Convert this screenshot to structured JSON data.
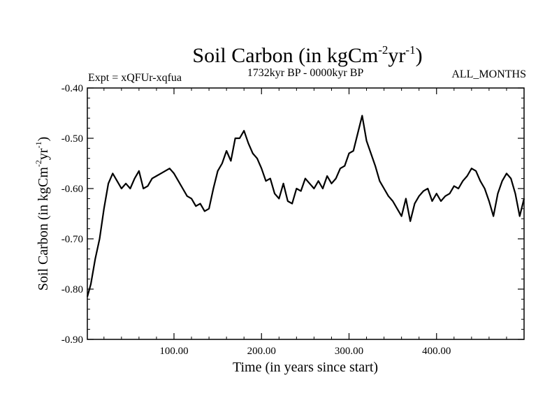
{
  "chart_data": {
    "type": "line",
    "title": "Soil Carbon (in kgCm",
    "title_sup1": "-2",
    "title_mid": "yr",
    "title_sup2": "-1",
    "title_end": ")",
    "subtitle_left": "Expt = xQFUr-xqfua",
    "subtitle_center": "1732kyr BP - 0000kyr BP",
    "subtitle_right": "ALL_MONTHS",
    "xlabel": "Time (in years since start)",
    "ylabel": "Soil Carbon (in kgCm",
    "ylabel_sup1": "-2",
    "ylabel_mid": "yr",
    "ylabel_sup2": "-1",
    "ylabel_end": ")",
    "xlim": [
      1,
      500
    ],
    "ylim": [
      -0.9,
      -0.4
    ],
    "x_ticks": [
      100,
      200,
      300,
      400
    ],
    "x_tick_labels": [
      "100.00",
      "200.00",
      "300.00",
      "400.00"
    ],
    "y_ticks": [
      -0.9,
      -0.8,
      -0.7,
      -0.6,
      -0.5,
      -0.4
    ],
    "y_tick_labels": [
      "-0.90",
      "-0.80",
      "-0.70",
      "-0.60",
      "-0.50",
      "-0.40"
    ],
    "series": [
      {
        "name": "Soil Carbon",
        "x": [
          1,
          5,
          10,
          15,
          20,
          25,
          30,
          35,
          40,
          45,
          50,
          55,
          60,
          65,
          70,
          75,
          80,
          85,
          90,
          95,
          100,
          105,
          110,
          115,
          120,
          125,
          130,
          135,
          140,
          145,
          150,
          155,
          160,
          165,
          170,
          175,
          180,
          185,
          190,
          195,
          200,
          205,
          210,
          215,
          220,
          225,
          230,
          235,
          240,
          245,
          250,
          255,
          260,
          265,
          270,
          275,
          280,
          285,
          290,
          295,
          300,
          305,
          310,
          315,
          320,
          325,
          330,
          335,
          340,
          345,
          350,
          355,
          360,
          365,
          370,
          375,
          380,
          385,
          390,
          395,
          400,
          405,
          410,
          415,
          420,
          425,
          430,
          435,
          440,
          445,
          450,
          455,
          460,
          465,
          470,
          475,
          480,
          485,
          490,
          495,
          500
        ],
        "values": [
          -0.815,
          -0.79,
          -0.74,
          -0.7,
          -0.64,
          -0.59,
          -0.57,
          -0.585,
          -0.6,
          -0.59,
          -0.6,
          -0.58,
          -0.565,
          -0.6,
          -0.595,
          -0.58,
          -0.575,
          -0.57,
          -0.565,
          -0.56,
          -0.57,
          -0.585,
          -0.6,
          -0.615,
          -0.62,
          -0.635,
          -0.63,
          -0.645,
          -0.64,
          -0.6,
          -0.565,
          -0.55,
          -0.525,
          -0.545,
          -0.5,
          -0.5,
          -0.485,
          -0.51,
          -0.53,
          -0.54,
          -0.56,
          -0.585,
          -0.58,
          -0.61,
          -0.62,
          -0.59,
          -0.625,
          -0.63,
          -0.6,
          -0.605,
          -0.58,
          -0.59,
          -0.6,
          -0.585,
          -0.6,
          -0.575,
          -0.59,
          -0.58,
          -0.56,
          -0.555,
          -0.53,
          -0.525,
          -0.49,
          -0.455,
          -0.505,
          -0.53,
          -0.555,
          -0.585,
          -0.6,
          -0.615,
          -0.625,
          -0.64,
          -0.655,
          -0.62,
          -0.665,
          -0.63,
          -0.615,
          -0.605,
          -0.6,
          -0.625,
          -0.61,
          -0.625,
          -0.615,
          -0.61,
          -0.595,
          -0.6,
          -0.585,
          -0.575,
          -0.56,
          -0.565,
          -0.585,
          -0.6,
          -0.625,
          -0.655,
          -0.61,
          -0.585,
          -0.57,
          -0.58,
          -0.61,
          -0.655,
          -0.62
        ]
      }
    ]
  }
}
